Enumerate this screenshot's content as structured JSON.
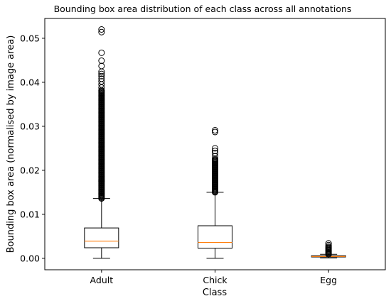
{
  "chart_data": {
    "type": "box",
    "title": "Bounding box area distribution of each class across all annotations",
    "xlabel": "Class",
    "ylabel": "Bounding box area (normalised by image area)",
    "ylim": [
      -0.0026,
      0.0545
    ],
    "yticks": [
      0.0,
      0.01,
      0.02,
      0.03,
      0.04,
      0.05
    ],
    "ytick_labels": [
      "0.00",
      "0.01",
      "0.02",
      "0.03",
      "0.04",
      "0.05"
    ],
    "grid": false,
    "colors": {
      "box": "#000000",
      "median": "#ff7f0e",
      "flier": "#000000"
    },
    "categories": [
      "Adult",
      "Chick",
      "Egg"
    ],
    "boxes": [
      {
        "name": "Adult",
        "whisker_low": 0.0,
        "q1": 0.0024,
        "median": 0.0039,
        "q3": 0.0069,
        "whisker_high": 0.0136,
        "outlier_range": [
          0.0136,
          0.0383
        ],
        "outliers": [
          0.0388,
          0.0395,
          0.0402,
          0.0408,
          0.0414,
          0.0419,
          0.0424,
          0.0437,
          0.0449,
          0.0467,
          0.0514,
          0.052
        ]
      },
      {
        "name": "Chick",
        "whisker_low": 0.0,
        "q1": 0.0023,
        "median": 0.0036,
        "q3": 0.0074,
        "whisker_high": 0.015,
        "outlier_range": [
          0.015,
          0.0226
        ],
        "outliers": [
          0.0232,
          0.0239,
          0.0244,
          0.025,
          0.0287,
          0.0291
        ]
      },
      {
        "name": "Egg",
        "whisker_low": 0.0001,
        "q1": 0.0003,
        "median": 0.0004,
        "q3": 0.0006,
        "whisker_high": 0.0009,
        "outlier_range": [
          0.0009,
          0.0028
        ],
        "outliers": [
          0.003,
          0.0034
        ]
      }
    ]
  }
}
